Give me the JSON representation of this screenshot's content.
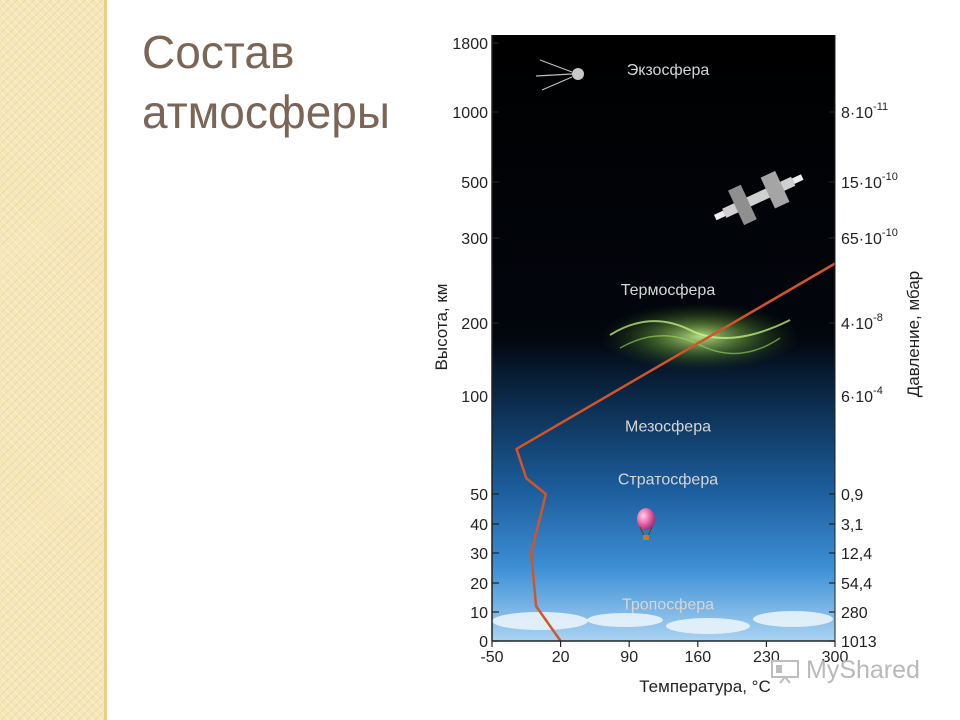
{
  "slide": {
    "title_line1": "Состав",
    "title_line2": "атмосферы"
  },
  "figure": {
    "y_axis_label": "Высота, км",
    "right_axis_label": "Давление, мбар",
    "x_axis_label": "Температура, °С",
    "altitude_ticks": [
      {
        "label": "1800",
        "km": 1800
      },
      {
        "label": "1000",
        "km": 1000
      },
      {
        "label": "500",
        "km": 500
      },
      {
        "label": "300",
        "km": 300
      },
      {
        "label": "200",
        "km": 200
      },
      {
        "label": "100",
        "km": 100
      },
      {
        "label": "50",
        "km": 50
      },
      {
        "label": "40",
        "km": 40
      },
      {
        "label": "30",
        "km": 30
      },
      {
        "label": "20",
        "km": 20
      },
      {
        "label": "10",
        "km": 10
      },
      {
        "label": "0",
        "km": 0
      }
    ],
    "temperature_ticks": [
      "-50",
      "20",
      "90",
      "160",
      "230",
      "300"
    ],
    "pressure_ticks": [
      {
        "mantissa": "8·10",
        "exp": "-11",
        "km": 1000
      },
      {
        "mantissa": "15·10",
        "exp": "-10",
        "km": 500
      },
      {
        "mantissa": "65·10",
        "exp": "-10",
        "km": 300
      },
      {
        "mantissa": "4·10",
        "exp": "-8",
        "km": 200
      },
      {
        "mantissa": "6·10",
        "exp": "-4",
        "km": 100
      },
      {
        "mantissa": "0,9",
        "exp": "",
        "km": 50
      },
      {
        "mantissa": "3,1",
        "exp": "",
        "km": 40
      },
      {
        "mantissa": "12,4",
        "exp": "",
        "km": 30
      },
      {
        "mantissa": "54,4",
        "exp": "",
        "km": 20
      },
      {
        "mantissa": "280",
        "exp": "",
        "km": 10
      },
      {
        "mantissa": "1013",
        "exp": "",
        "km": 0
      }
    ],
    "layers": [
      {
        "name": "Экзосфера",
        "km": 1500
      },
      {
        "name": "Термосфера",
        "km": 240
      },
      {
        "name": "Мезосфера",
        "km": 85
      },
      {
        "name": "Стратосфера",
        "km": 58
      },
      {
        "name": "Тропосфера",
        "km": 13
      }
    ],
    "temperature_profile": [
      {
        "t": 20,
        "km": 0
      },
      {
        "t": -5,
        "km": 12
      },
      {
        "t": -10,
        "km": 30
      },
      {
        "t": 5,
        "km": 50
      },
      {
        "t": -15,
        "km": 58
      },
      {
        "t": -25,
        "km": 73
      },
      {
        "t": 300,
        "km": 270
      }
    ],
    "colors": {
      "space": "#000000",
      "sky": "#3f8fd8",
      "sky_light": "#b9dcf5",
      "curve": "#d2542a",
      "layer_text": "#d6d6d6",
      "axis_text": "#222222"
    }
  },
  "watermark": {
    "text": "MyShared"
  }
}
